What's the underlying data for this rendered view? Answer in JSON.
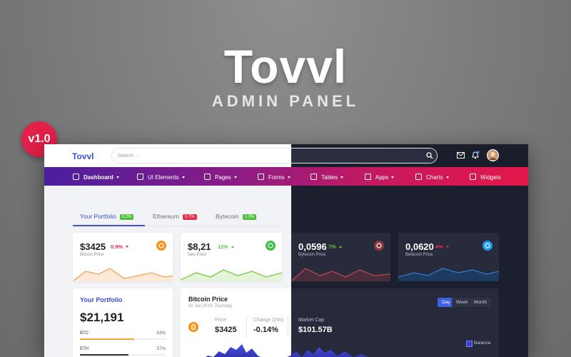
{
  "hero": {
    "title": "Tovvl",
    "subtitle": "ADMIN PANEL",
    "version": "v1.0"
  },
  "topbar": {
    "brand": "Tovvl",
    "search_placeholder": "Search ..."
  },
  "menu": [
    "Dashboard",
    "UI Elements",
    "Pages",
    "Forms",
    "Tables",
    "Apps",
    "Charts",
    "Widgets"
  ],
  "tabs": [
    {
      "label": "Your Portfolio",
      "badge": "0.2%"
    },
    {
      "label": "Ethereum",
      "badge": "0.7%"
    },
    {
      "label": "Bytecoin",
      "badge": "1.3%"
    }
  ],
  "cards": [
    {
      "value": "$3425",
      "change": "0.9%",
      "name": "Bitcoin Price"
    },
    {
      "value": "$8,21",
      "change": "11%",
      "name": "Neo Price"
    },
    {
      "value": "0,0596",
      "change": "7%",
      "name": "Bytecoin Price"
    },
    {
      "value": "0,0620",
      "change": "4%",
      "name": "Belacoin Price"
    }
  ],
  "portfolio": {
    "title": "Your Portfolio",
    "total": "$21,191",
    "holdings": [
      {
        "name": "BTC",
        "value": 63,
        "label": "63%"
      },
      {
        "name": "ETH",
        "value": 57,
        "label": "57%"
      }
    ]
  },
  "bitcoin_panel": {
    "title": "Bitcoin Price",
    "date": "31 Jan 2019, Thursday",
    "stats": [
      {
        "label": "Price",
        "value": "$3425"
      },
      {
        "label": "Change (24s)",
        "value": "-0.14%"
      },
      {
        "label": "Market Cap",
        "value": "$101.57B"
      }
    ],
    "ranges": [
      "Day",
      "Week",
      "Month"
    ],
    "legend": "Balance"
  }
}
